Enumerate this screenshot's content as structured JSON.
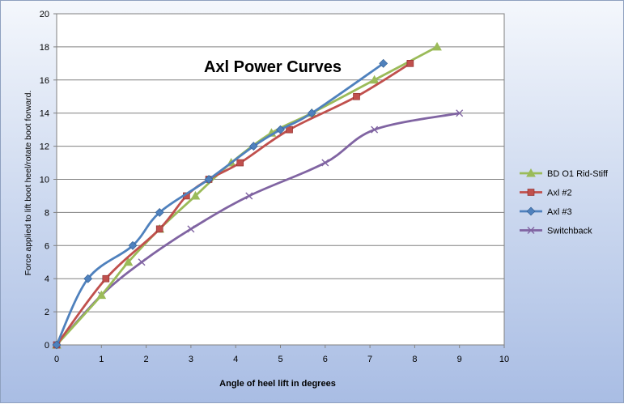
{
  "chart_data": {
    "type": "line",
    "title": "Axl Power Curves",
    "xlabel": "Angle of heel lift in degrees",
    "ylabel": "Force applied to lift boot heel/rotate boot forward.",
    "xlim": [
      0,
      10
    ],
    "ylim": [
      0,
      20
    ],
    "x_ticks": [
      "0",
      "1",
      "2",
      "3",
      "4",
      "5",
      "6",
      "7",
      "8",
      "9",
      "10"
    ],
    "y_ticks": [
      "0",
      "2",
      "4",
      "6",
      "8",
      "10",
      "12",
      "14",
      "16",
      "18",
      "20"
    ],
    "grid": "horizontal",
    "legend": "right",
    "series": [
      {
        "name": "BD O1 Rid-Stiff",
        "color": "#9bbb59",
        "marker": "triangle",
        "x": [
          0,
          1,
          1.6,
          2.3,
          3.1,
          3.9,
          4.8,
          5.7,
          7.1,
          8.5
        ],
        "y": [
          0,
          3,
          5,
          7,
          9,
          11,
          12.8,
          14,
          16,
          18
        ]
      },
      {
        "name": "Axl #2",
        "color": "#c0504d",
        "marker": "square",
        "x": [
          0,
          1.1,
          2.3,
          2.9,
          3.4,
          4.1,
          5.2,
          6.7,
          7.9
        ],
        "y": [
          0,
          4,
          7,
          9,
          10,
          11,
          13,
          15,
          17
        ]
      },
      {
        "name": "Axl #3",
        "color": "#4f81bd",
        "marker": "diamond",
        "x": [
          0,
          0.7,
          1.7,
          2.3,
          3.4,
          4.4,
          5,
          5.7,
          7.3
        ],
        "y": [
          0,
          4,
          6,
          8,
          10,
          12,
          13,
          14,
          17
        ]
      },
      {
        "name": "Switchback",
        "color": "#8064a2",
        "marker": "x",
        "x": [
          0,
          1,
          1.9,
          3,
          4.3,
          6,
          7.1,
          9
        ],
        "y": [
          0,
          3,
          5,
          7,
          9,
          11,
          13,
          14
        ]
      }
    ]
  }
}
